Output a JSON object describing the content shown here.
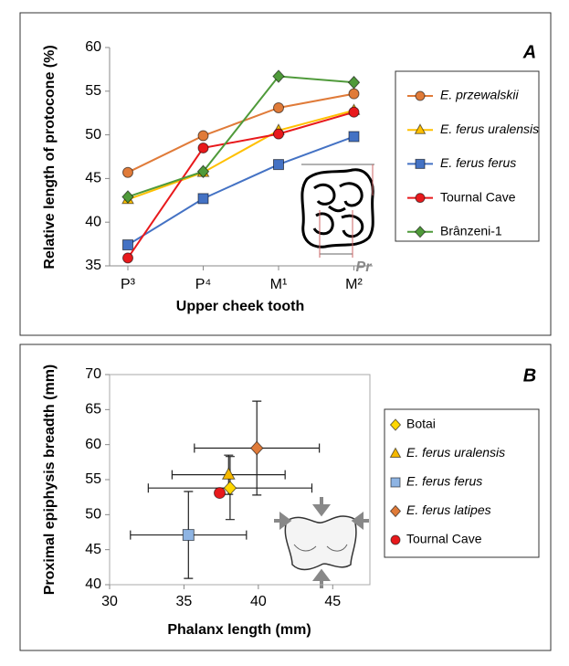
{
  "chart_data": [
    {
      "type": "line",
      "panel_label": "A",
      "y_label": "Relative length of protocone (%)",
      "x_label": "Upper cheek tooth",
      "categories": [
        "P³",
        "P⁴",
        "M¹",
        "M²"
      ],
      "ylim": [
        35,
        60
      ],
      "yticks": [
        35,
        40,
        45,
        50,
        55,
        60
      ],
      "grid": false,
      "inset_label": "Pr",
      "legend": "right",
      "series": [
        {
          "name": "E. przewalskii",
          "italic": true,
          "color": "#e07b39",
          "marker": "circle",
          "values": [
            45.7,
            49.9,
            53.1,
            54.7
          ]
        },
        {
          "name": "E. ferus uralensis",
          "italic": true,
          "color": "#ffc000",
          "marker": "triangle",
          "values": [
            42.6,
            45.7,
            50.5,
            52.8
          ]
        },
        {
          "name": "E. ferus ferus",
          "italic": true,
          "color": "#4472c4",
          "marker": "square",
          "values": [
            37.4,
            42.7,
            46.6,
            49.8
          ]
        },
        {
          "name": "Tournal Cave",
          "italic": false,
          "color": "#e8191c",
          "marker": "circle",
          "values": [
            35.9,
            48.5,
            50.1,
            52.6
          ]
        },
        {
          "name": "Brânzeni-1",
          "italic": false,
          "color": "#4f9a3a",
          "marker": "diamond",
          "values": [
            42.9,
            45.8,
            56.7,
            56.0
          ]
        }
      ]
    },
    {
      "type": "scatter",
      "panel_label": "B",
      "y_label": "Proximal epiphysis breadth (mm)",
      "x_label": "Phalanx length (mm)",
      "xlim": [
        30,
        47.5
      ],
      "xticks": [
        30,
        35,
        40,
        45
      ],
      "ylim": [
        40,
        70
      ],
      "yticks": [
        40,
        45,
        50,
        55,
        60,
        65,
        70
      ],
      "grid": false,
      "legend": "right",
      "series": [
        {
          "name": "Botai",
          "italic": false,
          "color": "#ffd700",
          "marker": "diamond",
          "x": [
            38.1
          ],
          "values": [
            53.8
          ],
          "xerr": [
            5.5
          ],
          "yerr": [
            4.5
          ]
        },
        {
          "name": "E. ferus uralensis",
          "italic": true,
          "color": "#f5b800",
          "marker": "triangle",
          "x": [
            38.0
          ],
          "values": [
            55.7
          ],
          "xerr": [
            3.8
          ],
          "yerr": [
            2.8
          ]
        },
        {
          "name": "E. ferus ferus",
          "italic": true,
          "color": "#8eb4e3",
          "marker": "square",
          "x": [
            35.3
          ],
          "values": [
            47.1
          ],
          "xerr": [
            3.9
          ],
          "yerr": [
            6.2
          ]
        },
        {
          "name": "E. ferus latipes",
          "italic": true,
          "color": "#e07b39",
          "marker": "diamond",
          "x": [
            39.9
          ],
          "values": [
            59.5
          ],
          "xerr": [
            4.2
          ],
          "yerr": [
            6.7
          ]
        },
        {
          "name": "Tournal Cave",
          "italic": false,
          "color": "#e8191c",
          "marker": "circle",
          "x": [
            37.4
          ],
          "values": [
            53.1
          ]
        }
      ]
    }
  ]
}
